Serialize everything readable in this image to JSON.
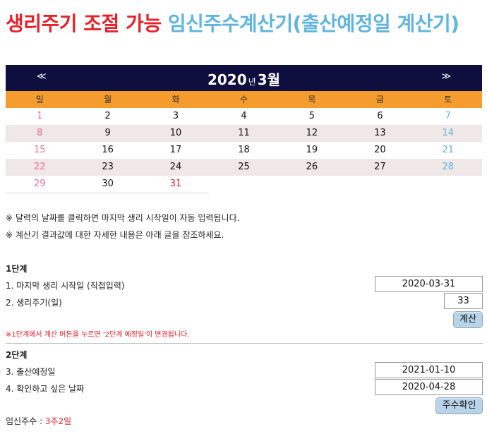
{
  "title": {
    "part1": "생리주기 조절 가능",
    "part2": "임신주수계산기(출산예정일 계산기)"
  },
  "calendar": {
    "prev": "≪",
    "next": "≫",
    "year": "2020",
    "year_unit": "년",
    "month": "3월",
    "weekdays": [
      "일",
      "월",
      "화",
      "수",
      "목",
      "금",
      "토"
    ],
    "weeks": [
      [
        "1",
        "2",
        "3",
        "4",
        "5",
        "6",
        "7"
      ],
      [
        "8",
        "9",
        "10",
        "11",
        "12",
        "13",
        "14"
      ],
      [
        "15",
        "16",
        "17",
        "18",
        "19",
        "20",
        "21"
      ],
      [
        "22",
        "23",
        "24",
        "25",
        "26",
        "27",
        "28"
      ],
      [
        "29",
        "30",
        "31"
      ]
    ],
    "highlight_day": "31",
    "colors": {
      "header_bg": "#0e0e3f",
      "weekday_bg": "#f59c2f",
      "sunday": "#ef6f8f",
      "saturday": "#5fb4e0",
      "highlight": "#e8202a",
      "shaded_row": "#f0e7e7"
    }
  },
  "notes": [
    "※ 달력의 날짜를 클릭하면 마지막 생리 시작일이 자동 입력됩니다.",
    "※ 계산기 결과값에 대한 자세한 내용은 아래 글을 참조하세요."
  ],
  "step1": {
    "heading": "1단계",
    "last_period_label": "1. 마지막 생리 시작일 (직접입력)",
    "last_period_value": "2020-03-31",
    "cycle_label": "2. 생리주기(일)",
    "cycle_value": "33",
    "calc_button": "계산",
    "warning": "※1단계에서 계산 버튼을 누르면 '2단계 예정일'이 변경됩니다."
  },
  "step2": {
    "heading": "2단계",
    "due_label": "3. 출산예정일",
    "due_value": "2021-01-10",
    "check_label": "4. 확인하고 싶은 날짜",
    "check_value": "2020-04-28",
    "week_button": "주수확인"
  },
  "result": {
    "label": "임신주수 : ",
    "value": "3주2일"
  }
}
